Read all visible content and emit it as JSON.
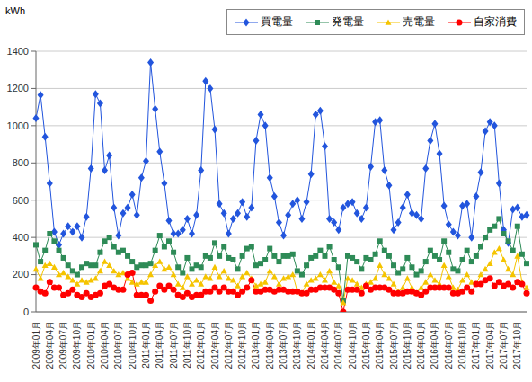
{
  "chart_data": {
    "type": "line",
    "y_label": "kWh",
    "categories": [
      "2009年01月",
      null,
      null,
      "2009年04月",
      null,
      null,
      "2009年07月",
      null,
      null,
      "2009年10月",
      null,
      null,
      "2010年01月",
      null,
      null,
      "2010年04月",
      null,
      null,
      "2010年07月",
      null,
      null,
      "2010年10月",
      null,
      null,
      "2011年01月",
      null,
      null,
      "2011年04月",
      null,
      null,
      "2011年07月",
      null,
      null,
      "2011年10月",
      null,
      null,
      "2012年01月",
      null,
      null,
      "2012年04月",
      null,
      null,
      "2012年07月",
      null,
      null,
      "2012年10月",
      null,
      null,
      "2013年01月",
      null,
      null,
      "2013年04月",
      null,
      null,
      "2013年07月",
      null,
      null,
      "2013年10月",
      null,
      null,
      "2014年01月",
      null,
      null,
      "2014年04月",
      null,
      null,
      "2014年07月",
      null,
      null,
      "2014年10月",
      null,
      null,
      "2015年01月",
      null,
      null,
      "2015年04月",
      null,
      null,
      "2015年07月",
      null,
      null,
      "2015年10月",
      null,
      null,
      "2016年01月",
      null,
      null,
      "2016年04月",
      null,
      null,
      "2016年07月",
      null,
      null,
      "2016年10月",
      null,
      null,
      "2017年01月",
      null,
      null,
      "2017年04月",
      null,
      null,
      "2017年07月",
      null,
      null,
      "2017年10月",
      null,
      null
    ],
    "series": [
      {
        "name": "買電量",
        "color": "#2255dd",
        "marker": "diamond",
        "values": [
          1040,
          1165,
          940,
          690,
          430,
          360,
          420,
          460,
          430,
          460,
          400,
          510,
          770,
          1170,
          1120,
          760,
          840,
          560,
          410,
          530,
          560,
          630,
          520,
          720,
          810,
          1340,
          1090,
          860,
          690,
          490,
          420,
          420,
          440,
          500,
          420,
          520,
          760,
          1240,
          1200,
          980,
          580,
          530,
          420,
          500,
          530,
          590,
          510,
          560,
          920,
          1060,
          1000,
          720,
          620,
          480,
          410,
          520,
          580,
          600,
          500,
          590,
          740,
          1060,
          1080,
          890,
          500,
          480,
          440,
          560,
          580,
          590,
          530,
          500,
          560,
          780,
          1020,
          1030,
          760,
          680,
          440,
          480,
          560,
          630,
          530,
          520,
          500,
          770,
          920,
          1010,
          850,
          570,
          470,
          430,
          410,
          570,
          580,
          400,
          620,
          750,
          970,
          1020,
          1000,
          690,
          440,
          370,
          550,
          560,
          510,
          520
        ]
      },
      {
        "name": "発電量",
        "color": "#2e8b57",
        "marker": "square",
        "values": [
          360,
          270,
          330,
          420,
          380,
          330,
          290,
          250,
          220,
          200,
          240,
          260,
          250,
          250,
          320,
          380,
          400,
          350,
          320,
          330,
          300,
          270,
          240,
          250,
          250,
          260,
          330,
          410,
          350,
          380,
          320,
          240,
          210,
          290,
          230,
          250,
          240,
          300,
          290,
          370,
          300,
          350,
          290,
          280,
          230,
          300,
          340,
          350,
          250,
          260,
          280,
          340,
          300,
          270,
          300,
          300,
          310,
          220,
          200,
          250,
          290,
          300,
          330,
          300,
          350,
          280,
          240,
          60,
          300,
          290,
          270,
          230,
          290,
          280,
          310,
          380,
          330,
          300,
          250,
          210,
          230,
          290,
          240,
          200,
          220,
          270,
          330,
          300,
          280,
          380,
          320,
          230,
          220,
          280,
          330,
          270,
          300,
          350,
          400,
          440,
          460,
          500,
          420,
          380,
          330,
          460,
          310,
          260
        ]
      },
      {
        "name": "売電量",
        "color": "#f5c400",
        "marker": "triangle",
        "values": [
          230,
          180,
          250,
          260,
          240,
          200,
          210,
          190,
          170,
          150,
          170,
          160,
          170,
          180,
          220,
          270,
          250,
          220,
          200,
          210,
          180,
          160,
          150,
          160,
          160,
          200,
          250,
          270,
          230,
          240,
          200,
          150,
          130,
          190,
          150,
          170,
          150,
          190,
          180,
          240,
          190,
          220,
          180,
          170,
          140,
          190,
          210,
          180,
          140,
          150,
          160,
          220,
          190,
          150,
          180,
          190,
          200,
          110,
          100,
          150,
          170,
          180,
          200,
          170,
          220,
          160,
          140,
          50,
          180,
          170,
          150,
          130,
          150,
          160,
          180,
          250,
          200,
          180,
          150,
          110,
          130,
          180,
          130,
          100,
          130,
          160,
          200,
          170,
          150,
          250,
          190,
          130,
          120,
          170,
          200,
          160,
          150,
          200,
          230,
          260,
          320,
          340,
          280,
          230,
          200,
          300,
          160,
          130
        ]
      },
      {
        "name": "自家消費",
        "color": "#ff0000",
        "marker": "circle",
        "values": [
          130,
          110,
          100,
          160,
          130,
          130,
          90,
          100,
          120,
          90,
          80,
          100,
          80,
          90,
          100,
          140,
          150,
          130,
          120,
          120,
          200,
          210,
          90,
          90,
          90,
          60,
          110,
          140,
          120,
          140,
          120,
          90,
          80,
          100,
          80,
          90,
          90,
          110,
          110,
          130,
          110,
          130,
          110,
          110,
          90,
          110,
          130,
          170,
          110,
          110,
          120,
          120,
          110,
          120,
          120,
          110,
          110,
          110,
          100,
          100,
          120,
          120,
          130,
          130,
          130,
          120,
          100,
          0,
          120,
          120,
          120,
          100,
          140,
          120,
          130,
          130,
          130,
          120,
          100,
          100,
          100,
          110,
          110,
          100,
          90,
          110,
          130,
          130,
          130,
          130,
          130,
          100,
          100,
          110,
          130,
          110,
          150,
          150,
          170,
          180,
          140,
          160,
          140,
          150,
          130,
          160,
          150,
          100
        ]
      }
    ],
    "ylim": [
      0,
      1400
    ],
    "yticks": [
      0,
      200,
      400,
      600,
      800,
      1000,
      1200,
      1400
    ],
    "grid": true,
    "legend": "top-right"
  }
}
